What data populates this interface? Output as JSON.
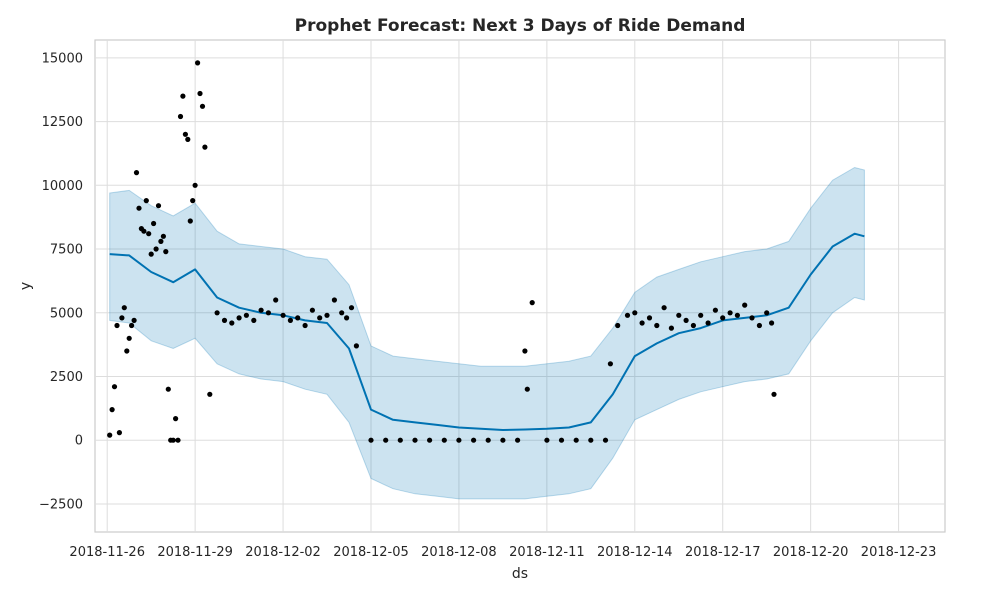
{
  "chart_data": {
    "type": "line",
    "title": "Prophet Forecast: Next 3 Days of Ride Demand",
    "xlabel": "ds",
    "ylabel": "y",
    "x_ticks": [
      "2018-11-26",
      "2018-11-29",
      "2018-12-02",
      "2018-12-05",
      "2018-12-08",
      "2018-12-11",
      "2018-12-14",
      "2018-12-17",
      "2018-12-20",
      "2018-12-23"
    ],
    "y_ticks": [
      "15000",
      "12500",
      "10000",
      "7500",
      "5000",
      "2500",
      "0",
      "−2500"
    ],
    "xlim": [
      "2018-11-25T14:00",
      "2018-12-24T14:00"
    ],
    "ylim": [
      -3600,
      15700
    ],
    "grid": true,
    "colors": {
      "forecast": "#0072B2",
      "interval": "#0072B2",
      "observed": "#000000"
    },
    "forecast": {
      "x": [
        "2018-11-26T02:00",
        "2018-11-26T18:00",
        "2018-11-27T12:00",
        "2018-11-28T06:00",
        "2018-11-29T00:00",
        "2018-11-29T18:00",
        "2018-11-30T12:00",
        "2018-12-01T06:00",
        "2018-12-02T00:00",
        "2018-12-02T18:00",
        "2018-12-03T12:00",
        "2018-12-04T06:00",
        "2018-12-05T00:00",
        "2018-12-05T18:00",
        "2018-12-06T12:00",
        "2018-12-07T06:00",
        "2018-12-08T00:00",
        "2018-12-08T18:00",
        "2018-12-09T12:00",
        "2018-12-10T06:00",
        "2018-12-11T00:00",
        "2018-12-11T18:00",
        "2018-12-12T12:00",
        "2018-12-13T06:00",
        "2018-12-14T00:00",
        "2018-12-14T18:00",
        "2018-12-15T12:00",
        "2018-12-16T06:00",
        "2018-12-17T00:00",
        "2018-12-17T18:00",
        "2018-12-18T12:00",
        "2018-12-19T06:00",
        "2018-12-20T00:00",
        "2018-12-20T18:00",
        "2018-12-21T12:00",
        "2018-12-21T20:00"
      ],
      "yhat": [
        7300,
        7250,
        6600,
        6200,
        6700,
        5600,
        5200,
        5000,
        4900,
        4700,
        4600,
        3600,
        1200,
        800,
        700,
        600,
        500,
        450,
        400,
        420,
        450,
        500,
        700,
        1800,
        3300,
        3800,
        4200,
        4400,
        4700,
        4800,
        4900,
        5200,
        6500,
        7600,
        8100,
        8000
      ],
      "yhat_lower": [
        4700,
        4600,
        3900,
        3600,
        4000,
        3000,
        2600,
        2400,
        2300,
        2000,
        1800,
        700,
        -1500,
        -1900,
        -2100,
        -2200,
        -2300,
        -2300,
        -2300,
        -2300,
        -2200,
        -2100,
        -1900,
        -700,
        800,
        1200,
        1600,
        1900,
        2100,
        2300,
        2400,
        2600,
        3900,
        5000,
        5600,
        5500
      ],
      "yhat_upper": [
        9700,
        9800,
        9200,
        8800,
        9300,
        8200,
        7700,
        7600,
        7500,
        7200,
        7100,
        6100,
        3700,
        3300,
        3200,
        3100,
        3000,
        2900,
        2900,
        2900,
        3000,
        3100,
        3300,
        4400,
        5800,
        6400,
        6700,
        7000,
        7200,
        7400,
        7500,
        7800,
        9100,
        10200,
        10700,
        10600
      ]
    },
    "observed": {
      "x": [
        "2018-11-26T02:00",
        "2018-11-26T04:00",
        "2018-11-26T06:00",
        "2018-11-26T08:00",
        "2018-11-26T10:00",
        "2018-11-26T12:00",
        "2018-11-26T14:00",
        "2018-11-26T16:00",
        "2018-11-26T18:00",
        "2018-11-26T20:00",
        "2018-11-26T22:00",
        "2018-11-27T00:00",
        "2018-11-27T02:00",
        "2018-11-27T04:00",
        "2018-11-27T06:00",
        "2018-11-27T08:00",
        "2018-11-27T10:00",
        "2018-11-27T12:00",
        "2018-11-27T14:00",
        "2018-11-27T16:00",
        "2018-11-27T18:00",
        "2018-11-27T20:00",
        "2018-11-27T22:00",
        "2018-11-28T00:00",
        "2018-11-28T02:00",
        "2018-11-28T04:00",
        "2018-11-28T06:00",
        "2018-11-28T08:00",
        "2018-11-28T10:00",
        "2018-11-28T12:00",
        "2018-11-28T14:00",
        "2018-11-28T16:00",
        "2018-11-28T18:00",
        "2018-11-28T20:00",
        "2018-11-28T22:00",
        "2018-11-29T00:00",
        "2018-11-29T02:00",
        "2018-11-29T04:00",
        "2018-11-29T06:00",
        "2018-11-29T08:00",
        "2018-11-29T12:00",
        "2018-11-29T18:00",
        "2018-11-30T00:00",
        "2018-11-30T06:00",
        "2018-11-30T12:00",
        "2018-11-30T18:00",
        "2018-12-01T00:00",
        "2018-12-01T06:00",
        "2018-12-01T12:00",
        "2018-12-01T18:00",
        "2018-12-02T00:00",
        "2018-12-02T06:00",
        "2018-12-02T12:00",
        "2018-12-02T18:00",
        "2018-12-03T00:00",
        "2018-12-03T06:00",
        "2018-12-03T12:00",
        "2018-12-03T18:00",
        "2018-12-04T00:00",
        "2018-12-04T04:00",
        "2018-12-04T08:00",
        "2018-12-04T12:00",
        "2018-12-05T00:00",
        "2018-12-05T12:00",
        "2018-12-06T00:00",
        "2018-12-06T12:00",
        "2018-12-07T00:00",
        "2018-12-07T12:00",
        "2018-12-08T00:00",
        "2018-12-08T12:00",
        "2018-12-09T00:00",
        "2018-12-09T12:00",
        "2018-12-10T00:00",
        "2018-12-10T06:00",
        "2018-12-10T08:00",
        "2018-12-10T12:00",
        "2018-12-11T00:00",
        "2018-12-11T12:00",
        "2018-12-12T00:00",
        "2018-12-12T12:00",
        "2018-12-13T00:00",
        "2018-12-13T04:00",
        "2018-12-13T10:00",
        "2018-12-13T18:00",
        "2018-12-14T00:00",
        "2018-12-14T06:00",
        "2018-12-14T12:00",
        "2018-12-14T18:00",
        "2018-12-15T00:00",
        "2018-12-15T06:00",
        "2018-12-15T12:00",
        "2018-12-15T18:00",
        "2018-12-16T00:00",
        "2018-12-16T06:00",
        "2018-12-16T12:00",
        "2018-12-16T18:00",
        "2018-12-17T00:00",
        "2018-12-17T06:00",
        "2018-12-17T12:00",
        "2018-12-17T18:00",
        "2018-12-18T00:00",
        "2018-12-18T06:00",
        "2018-12-18T12:00",
        "2018-12-18T16:00",
        "2018-12-18T18:00"
      ],
      "y": [
        200,
        1200,
        2100,
        4500,
        300,
        4800,
        5200,
        3500,
        4000,
        4500,
        4700,
        10500,
        9100,
        8300,
        8200,
        9400,
        8100,
        7300,
        8500,
        7500,
        9200,
        7800,
        8000,
        7400,
        2000,
        0,
        0,
        850,
        0,
        12700,
        13500,
        12000,
        11800,
        8600,
        9400,
        10000,
        14800,
        13600,
        13100,
        11500,
        1800,
        5000,
        4700,
        4600,
        4800,
        4900,
        4700,
        5100,
        5000,
        5500,
        4900,
        4700,
        4800,
        4500,
        5100,
        4800,
        4900,
        5500,
        5000,
        4800,
        5200,
        3700,
        0,
        0,
        0,
        0,
        0,
        0,
        0,
        0,
        0,
        0,
        0,
        3500,
        2000,
        5400,
        0,
        0,
        0,
        0,
        0,
        3000,
        4500,
        4900,
        5000,
        4600,
        4800,
        4500,
        5200,
        4400,
        4900,
        4700,
        4500,
        4900,
        4600,
        5100,
        4800,
        5000,
        4900,
        5300,
        4800,
        4500,
        5000,
        4600,
        1800
      ]
    }
  }
}
